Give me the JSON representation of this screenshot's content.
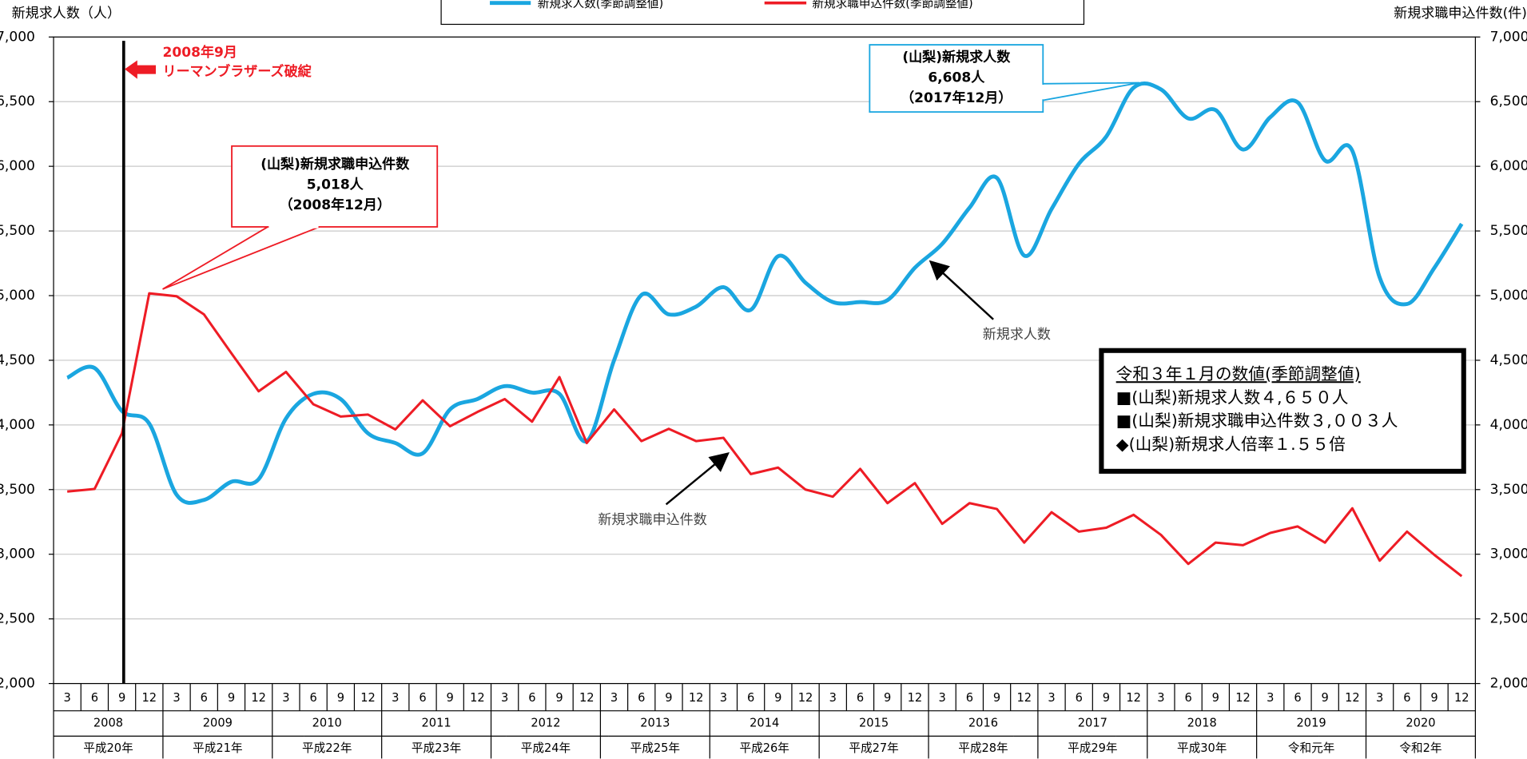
{
  "chart_data": {
    "type": "line",
    "y_title": "新規求人数（人）",
    "y2_title": "新規求職申込件数(件)",
    "categories": [
      "3",
      "6",
      "9",
      "12",
      "3",
      "6",
      "9",
      "12",
      "3",
      "6",
      "9",
      "12",
      "3",
      "6",
      "9",
      "12",
      "3",
      "6",
      "9",
      "12",
      "3",
      "6",
      "9",
      "12",
      "3",
      "6",
      "9",
      "12",
      "3",
      "6",
      "9",
      "12",
      "3",
      "6",
      "9",
      "12",
      "3",
      "6",
      "9",
      "12",
      "3",
      "6",
      "9",
      "12",
      "3",
      "6",
      "9",
      "12",
      "3",
      "6",
      "9",
      "12"
    ],
    "years": [
      "2008",
      "2009",
      "2010",
      "2011",
      "2012",
      "2013",
      "2014",
      "2015",
      "2016",
      "2017",
      "2018",
      "2019",
      "2020"
    ],
    "eras": [
      "平成20年",
      "平成21年",
      "平成22年",
      "平成23年",
      "平成24年",
      "平成25年",
      "平成26年",
      "平成27年",
      "平成28年",
      "平成29年",
      "平成30年",
      "令和元年",
      "令和2年"
    ],
    "series": [
      {
        "name": "新規求人数(季節調整値)",
        "color": "#1aa6e0",
        "smooth": true,
        "values": [
          4365,
          4440,
          4108,
          4010,
          3460,
          3420,
          3560,
          3580,
          4050,
          4240,
          4200,
          3935,
          3860,
          3780,
          4120,
          4200,
          4300,
          4250,
          4240,
          3875,
          4500,
          5005,
          4855,
          4915,
          5065,
          4890,
          5305,
          5100,
          4950,
          4950,
          4965,
          5215,
          5400,
          5680,
          5910,
          5310,
          5670,
          6020,
          6230,
          6608,
          6595,
          6370,
          6435,
          6130,
          6380,
          6495,
          6045,
          6120,
          5140,
          4935,
          5215,
          5555
        ]
      },
      {
        "name": "新規求職申込件数(季節調整値)",
        "color": "#ee1c25",
        "axis": "y2",
        "values": [
          3485,
          3505,
          3935,
          5018,
          4995,
          4855,
          4555,
          4260,
          4410,
          4160,
          4065,
          4080,
          3965,
          4190,
          3990,
          4100,
          4200,
          4025,
          4370,
          3860,
          4120,
          3875,
          3970,
          3875,
          3900,
          3620,
          3670,
          3500,
          3445,
          3660,
          3395,
          3550,
          3235,
          3395,
          3350,
          3090,
          3325,
          3175,
          3205,
          3305,
          3150,
          2925,
          3090,
          3070,
          3165,
          3215,
          3090,
          3355,
          2950,
          3175,
          2995,
          2830
        ]
      }
    ],
    "ylim": [
      2000,
      7000
    ],
    "yticks": [
      {
        "value": 2000,
        "label": "2,000"
      },
      {
        "value": 2500,
        "label": "2,500"
      },
      {
        "value": 3000,
        "label": "3,000"
      },
      {
        "value": 3500,
        "label": "3,500"
      },
      {
        "value": 4000,
        "label": "4,000"
      },
      {
        "value": 4500,
        "label": "4,500"
      },
      {
        "value": 5000,
        "label": "5,000"
      },
      {
        "value": 5500,
        "label": "5,500"
      },
      {
        "value": 6000,
        "label": "6,000"
      },
      {
        "value": 6500,
        "label": "6,500"
      },
      {
        "value": 7000,
        "label": "7,000"
      }
    ],
    "y2lim": [
      2000,
      7000
    ],
    "y2ticks": [
      {
        "value": 2000,
        "label": "2,000"
      },
      {
        "value": 2500,
        "label": "2,500"
      },
      {
        "value": 3000,
        "label": "3,000"
      },
      {
        "value": 3500,
        "label": "3,500"
      },
      {
        "value": 4000,
        "label": "4,000"
      },
      {
        "value": 4500,
        "label": "4,500"
      },
      {
        "value": 5000,
        "label": "5,000"
      },
      {
        "value": 5500,
        "label": "5,500"
      },
      {
        "value": 6000,
        "label": "6,000"
      },
      {
        "value": 6500,
        "label": "6,500"
      },
      {
        "value": 7000,
        "label": "7,000"
      }
    ],
    "grid": true,
    "annotations": {
      "event_date": "2008年9月",
      "event_label": "リーマンブラザーズ破綻",
      "red_callout": [
        "(山梨)新規求職申込件数",
        "5,018人",
        "（2008年12月）"
      ],
      "blue_callout": [
        "(山梨)新規求人数",
        "6,608人",
        "（2017年12月）"
      ],
      "blue_arrow_label": "新規求人数",
      "red_arrow_label": "新規求職申込件数"
    },
    "info_box": {
      "title": "令和３年１月の数値(季節調整値)",
      "lines": [
        "■(山梨)新規求人数４,６５０人",
        "■(山梨)新規求職申込件数３,００３人",
        "◆(山梨)新規求人倍率１.５５倍"
      ]
    }
  }
}
